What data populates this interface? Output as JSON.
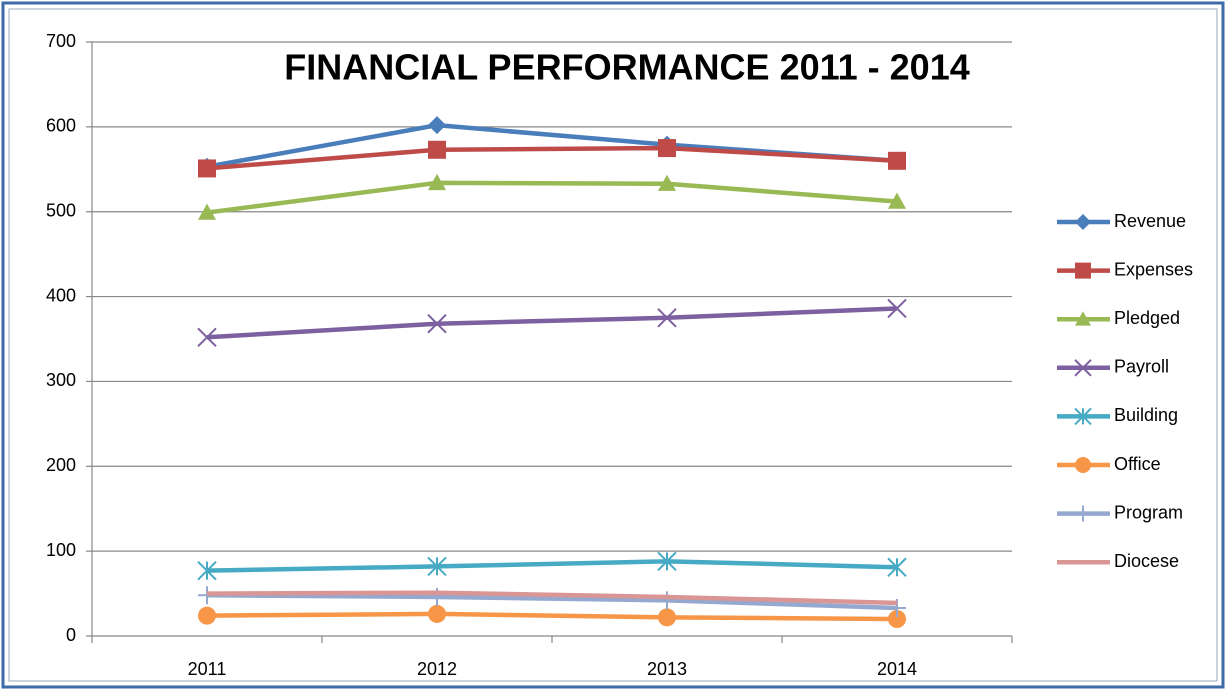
{
  "chart_data": {
    "type": "line",
    "title": "FINANCIAL PERFORMANCE 2011 - 2014",
    "categories": [
      "2011",
      "2012",
      "2013",
      "2014"
    ],
    "series": [
      {
        "name": "Revenue",
        "color": "#4a7ebb",
        "marker": "diamond",
        "values": [
          553,
          602,
          579,
          560
        ]
      },
      {
        "name": "Expenses",
        "color": "#be4b48",
        "marker": "square",
        "values": [
          551,
          573,
          575,
          560
        ]
      },
      {
        "name": "Pledged",
        "color": "#98b954",
        "marker": "triangle",
        "values": [
          499,
          534,
          533,
          512
        ]
      },
      {
        "name": "Payroll",
        "color": "#7d60a0",
        "marker": "x",
        "values": [
          352,
          368,
          375,
          386
        ]
      },
      {
        "name": "Building",
        "color": "#46aac5",
        "marker": "asterisk",
        "values": [
          77,
          82,
          88,
          81
        ]
      },
      {
        "name": "Office",
        "color": "#f79646",
        "marker": "circle",
        "values": [
          24,
          26,
          22,
          20
        ]
      },
      {
        "name": "Program",
        "color": "#94a8d0",
        "marker": "plus",
        "values": [
          48,
          46,
          42,
          33
        ]
      },
      {
        "name": "Diocese",
        "color": "#d99694",
        "marker": "none",
        "values": [
          50,
          51,
          46,
          39
        ]
      }
    ],
    "ylim": [
      0,
      700
    ],
    "yticks": [
      0,
      100,
      200,
      300,
      400,
      500,
      600,
      700
    ],
    "grid": true,
    "legend": "right"
  }
}
